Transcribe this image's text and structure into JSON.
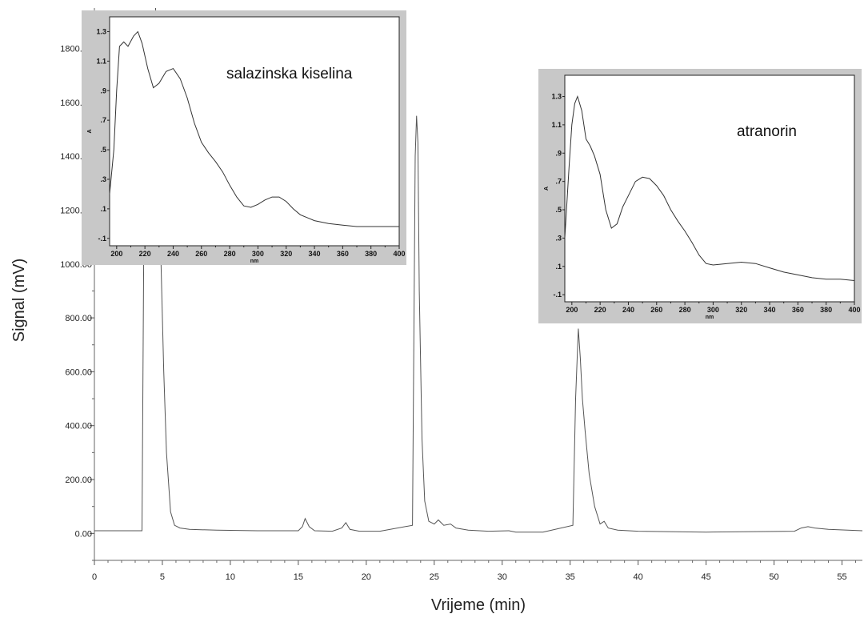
{
  "chart_data": [
    {
      "type": "line",
      "xlabel": "Vrijeme (min)",
      "ylabel": "Signal (mV)",
      "xlim": [
        0,
        56.5
      ],
      "ylim": [
        -100,
        1950
      ],
      "x_ticks": [
        0,
        5,
        10,
        15,
        20,
        25,
        30,
        35,
        40,
        45,
        50,
        55
      ],
      "x_tick_labels": [
        "0",
        "5",
        "10",
        "15",
        "20",
        "25",
        "30",
        "35",
        "40",
        "45",
        "50",
        "55"
      ],
      "y_ticks": [
        0,
        200,
        400,
        600,
        800,
        1000,
        1200,
        1400,
        1600,
        1800
      ],
      "y_tick_labels": [
        "0.00",
        "200.00",
        "400.00",
        "600.00",
        "800.00",
        "1000.00",
        "1200.00",
        "1400.00",
        "1600.00",
        "1800.00"
      ],
      "series": [
        {
          "x": [
            0,
            3.5,
            3.65,
            3.75,
            3.9,
            4.2,
            4.5,
            4.7,
            4.9,
            5.1,
            5.3,
            5.6,
            5.9,
            6.3,
            7,
            9,
            12,
            15,
            15.3,
            15.5,
            15.8,
            16.2,
            17.5,
            18.2,
            18.5,
            18.8,
            19.5,
            21,
            23.4,
            23.6,
            23.7,
            23.8,
            23.9,
            24.1,
            24.3,
            24.6,
            25,
            25.3,
            25.7,
            26.2,
            26.6,
            27.5,
            29,
            30.5,
            31,
            33,
            35.2,
            35.4,
            35.6,
            35.75,
            35.9,
            36.1,
            36.4,
            36.8,
            37.2,
            37.5,
            37.8,
            38.5,
            40,
            45,
            51.5,
            52,
            52.5,
            53,
            54,
            56.5
          ],
          "y": [
            10,
            10,
            1200,
            1900,
            1300,
            1150,
            1950,
            1500,
            1000,
            600,
            300,
            80,
            30,
            20,
            15,
            12,
            10,
            10,
            25,
            55,
            25,
            10,
            8,
            20,
            40,
            15,
            8,
            8,
            30,
            1400,
            1550,
            1450,
            900,
            350,
            120,
            45,
            35,
            50,
            30,
            35,
            20,
            12,
            8,
            10,
            5,
            5,
            30,
            500,
            760,
            650,
            500,
            380,
            220,
            100,
            35,
            45,
            20,
            12,
            8,
            5,
            8,
            20,
            25,
            20,
            15,
            10
          ]
        }
      ]
    },
    {
      "type": "line",
      "label": "salazinska kiselina",
      "xlabel": "nm",
      "ylabel": "A",
      "xlim": [
        195,
        400
      ],
      "ylim": [
        -0.15,
        1.4
      ],
      "x_ticks": [
        200,
        220,
        240,
        260,
        280,
        300,
        320,
        340,
        360,
        380,
        400
      ],
      "x_tick_labels": [
        "200",
        "220",
        "240",
        "260",
        "280",
        "300",
        "320",
        "340",
        "360",
        "380",
        "400"
      ],
      "y_ticks": [
        -0.1,
        0.1,
        0.3,
        0.5,
        0.7,
        0.9,
        1.1,
        1.3
      ],
      "y_tick_labels": [
        "-.1",
        ".1",
        ".3",
        ".5",
        ".7",
        ".9",
        "1.1",
        "1.3"
      ],
      "series": [
        {
          "x": [
            195,
            198,
            200,
            202,
            205,
            208,
            212,
            215,
            218,
            222,
            226,
            230,
            235,
            240,
            245,
            250,
            255,
            260,
            265,
            270,
            275,
            280,
            285,
            290,
            295,
            300,
            305,
            310,
            315,
            320,
            325,
            330,
            340,
            350,
            360,
            370,
            380,
            390,
            400
          ],
          "y": [
            0.2,
            0.5,
            0.9,
            1.2,
            1.23,
            1.2,
            1.27,
            1.3,
            1.22,
            1.05,
            0.92,
            0.95,
            1.03,
            1.05,
            0.98,
            0.85,
            0.68,
            0.55,
            0.48,
            0.42,
            0.35,
            0.26,
            0.18,
            0.12,
            0.11,
            0.13,
            0.16,
            0.18,
            0.18,
            0.15,
            0.1,
            0.06,
            0.02,
            0.0,
            -0.01,
            -0.02,
            -0.02,
            -0.02,
            -0.02
          ]
        }
      ]
    },
    {
      "type": "line",
      "label": "atranorin",
      "xlabel": "nm",
      "ylabel": "A",
      "xlim": [
        195,
        400
      ],
      "ylim": [
        -0.15,
        1.45
      ],
      "x_ticks": [
        200,
        220,
        240,
        260,
        280,
        300,
        320,
        340,
        360,
        380,
        400
      ],
      "x_tick_labels": [
        "200",
        "220",
        "240",
        "260",
        "280",
        "300",
        "320",
        "340",
        "360",
        "380",
        "400"
      ],
      "y_ticks": [
        -0.1,
        0.1,
        0.3,
        0.5,
        0.7,
        0.9,
        1.1,
        1.3
      ],
      "y_tick_labels": [
        "-.1",
        ".1",
        ".3",
        ".5",
        ".7",
        ".9",
        "1.1",
        "1.3"
      ],
      "series": [
        {
          "x": [
            195,
            198,
            200,
            202,
            204,
            207,
            210,
            213,
            216,
            220,
            224,
            228,
            232,
            236,
            240,
            245,
            250,
            255,
            260,
            265,
            270,
            275,
            280,
            285,
            290,
            295,
            300,
            310,
            320,
            330,
            340,
            350,
            360,
            370,
            380,
            390,
            400
          ],
          "y": [
            0.3,
            0.8,
            1.1,
            1.25,
            1.3,
            1.2,
            1.0,
            0.95,
            0.88,
            0.75,
            0.5,
            0.37,
            0.4,
            0.52,
            0.6,
            0.7,
            0.73,
            0.72,
            0.67,
            0.6,
            0.5,
            0.42,
            0.35,
            0.27,
            0.18,
            0.12,
            0.11,
            0.12,
            0.13,
            0.12,
            0.09,
            0.06,
            0.04,
            0.02,
            0.01,
            0.01,
            0.0
          ]
        }
      ]
    }
  ]
}
